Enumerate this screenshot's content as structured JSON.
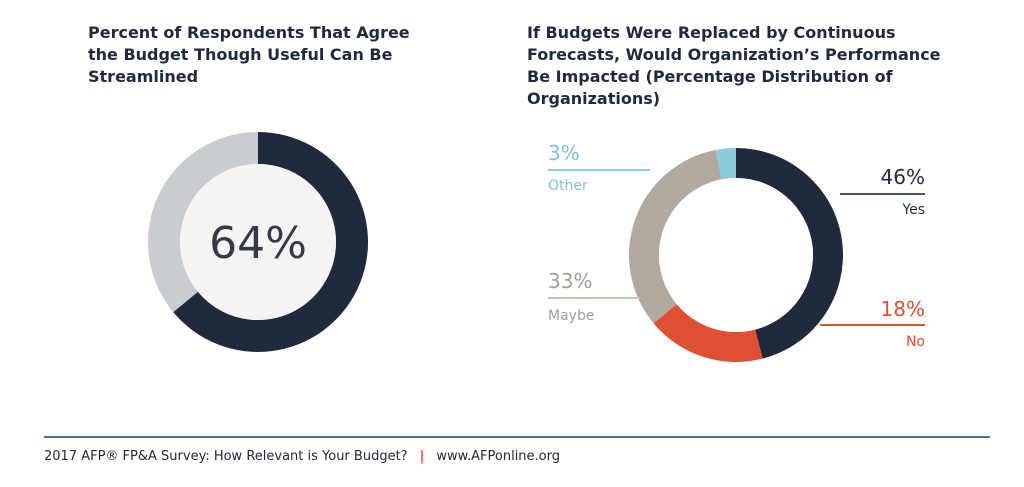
{
  "titles": {
    "left": "Percent of Respondents That Agree the Budget Though Useful Can Be Streamlined",
    "right": "If Budgets Were Replaced by Continuous Forecasts, Would Organization’s Performance Be Impacted (Percentage Distribution of Organizations)"
  },
  "footer": {
    "survey": "2017 AFP® FP&A Survey: How Relevant is Your Budget?",
    "separator": "|",
    "url": "www.AFPonline.org"
  },
  "colors": {
    "navy": "#1f2a3d",
    "light_gray": "#c9ccd1",
    "taupe": "#b1a99e",
    "orange": "#e04f32",
    "teal": "#8ccbdc",
    "footer_rule": "#4d7390"
  },
  "chart_data": [
    {
      "type": "pie",
      "title": "Percent of Respondents That Agree the Budget Though Useful Can Be Streamlined",
      "style": "donut",
      "center_label": "64%",
      "slices": [
        {
          "label": "",
          "value": 64,
          "color": "#1f2a3d"
        },
        {
          "label": "",
          "value": 36,
          "color": "#c9ccd1"
        }
      ]
    },
    {
      "type": "pie",
      "title": "If Budgets Were Replaced by Continuous Forecasts, Would Organization’s Performance Be Impacted (Percentage Distribution of Organizations)",
      "style": "donut",
      "slices": [
        {
          "label": "Yes",
          "value": 46,
          "display": "46%",
          "color": "#1f2a3d",
          "side": "right"
        },
        {
          "label": "No",
          "value": 18,
          "display": "18%",
          "color": "#e04f32",
          "side": "right"
        },
        {
          "label": "Maybe",
          "value": 33,
          "display": "33%",
          "color": "#b1a99e",
          "side": "left"
        },
        {
          "label": "Other",
          "value": 3,
          "display": "3%",
          "color": "#8ccbdc",
          "side": "left"
        }
      ]
    }
  ]
}
